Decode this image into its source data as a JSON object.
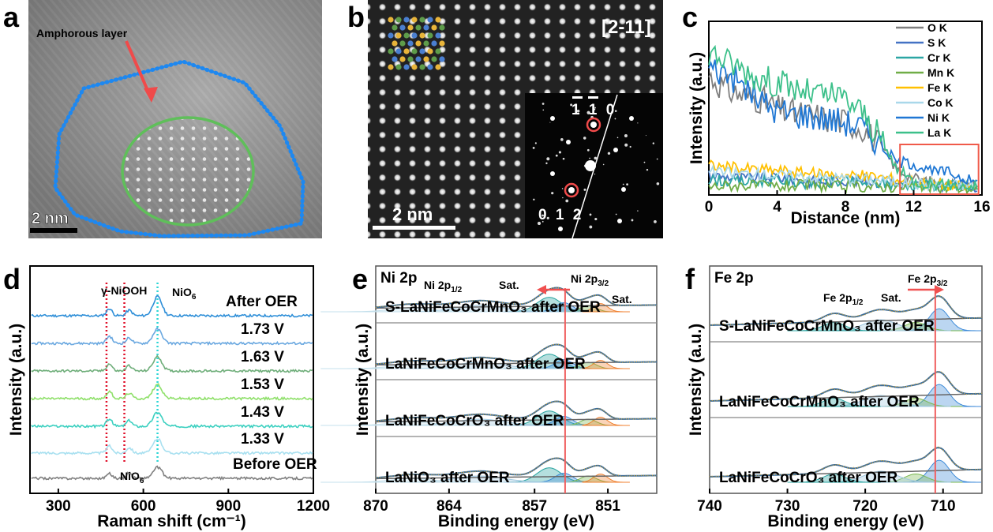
{
  "panels": {
    "a": {
      "label": "a",
      "annotation": "Amphorous layer",
      "scalebar": "2 nm"
    },
    "b": {
      "label": "b",
      "zone_axis": "[2-11]",
      "scalebar": "2 nm",
      "fft_top": "1 1 0",
      "fft_bottom": "0 1 2"
    },
    "c": {
      "label": "c"
    },
    "d": {
      "label": "d",
      "peak_top": "γ-NiOOH",
      "peak_nio6": "NiO",
      "peak_nio6_sub": "6",
      "peak_bottom": "NiO",
      "peak_bottom_sub": "6"
    },
    "e": {
      "label": "e",
      "title": "Ni 2p",
      "sub_a": "Ni 2p",
      "sub_a_idx": "1/2",
      "sat1": "Sat.",
      "sub_b": "Ni 2p",
      "sub_b_idx": "3/2",
      "sat2": "Sat."
    },
    "f": {
      "label": "f",
      "title": "Fe 2p",
      "sub_a": "Fe 2p",
      "sub_a_idx": "1/2",
      "sat": "Sat.",
      "sub_b": "Fe 2p",
      "sub_b_idx": "3/2"
    }
  },
  "chart_data": [
    {
      "panel": "c",
      "type": "line",
      "xlabel": "Distance (nm)",
      "ylabel": "Intensity (a.u.)",
      "xlim": [
        0,
        16
      ],
      "xticks": [
        "0",
        "4",
        "8",
        "12",
        "16"
      ],
      "legend_position": "top-right",
      "series": [
        {
          "name": "O K",
          "color": "#7f7f7f",
          "x": [
            0,
            1,
            2,
            3,
            4,
            5,
            6,
            7,
            8,
            9,
            10,
            11,
            12,
            13,
            14,
            15,
            15.8
          ],
          "values": [
            7.2,
            6.4,
            6.0,
            5.8,
            5.2,
            4.9,
            4.8,
            4.6,
            4.4,
            4.1,
            3.0,
            1.6,
            1.0,
            0.8,
            0.7,
            0.6,
            0.6
          ]
        },
        {
          "name": "S K",
          "color": "#4472c4",
          "x": [
            0,
            2,
            4,
            6,
            8,
            10,
            12,
            14,
            15.8
          ],
          "values": [
            1.2,
            1.0,
            1.1,
            0.8,
            0.9,
            0.8,
            0.6,
            0.6,
            0.5
          ]
        },
        {
          "name": "Cr K",
          "color": "#2ca6a4",
          "x": [
            0,
            2,
            4,
            6,
            8,
            10,
            12,
            14,
            15.8
          ],
          "values": [
            0.9,
            0.8,
            0.9,
            0.7,
            0.8,
            0.7,
            0.6,
            0.6,
            0.5
          ]
        },
        {
          "name": "Mn K",
          "color": "#70ad47",
          "x": [
            0,
            2,
            4,
            6,
            8,
            10,
            12,
            14,
            15.8
          ],
          "values": [
            0.5,
            0.6,
            0.5,
            0.6,
            0.5,
            0.5,
            0.5,
            0.4,
            0.4
          ]
        },
        {
          "name": "Fe K",
          "color": "#ffc000",
          "x": [
            0,
            2,
            4,
            6,
            8,
            10,
            12,
            14,
            15.8
          ],
          "values": [
            1.8,
            1.6,
            1.5,
            1.3,
            1.2,
            1.1,
            0.8,
            0.6,
            0.5
          ]
        },
        {
          "name": "Co K",
          "color": "#a9d8ea",
          "x": [
            0,
            2,
            4,
            6,
            8,
            10,
            12,
            14,
            15.8
          ],
          "values": [
            1.4,
            1.3,
            1.2,
            1.1,
            1.0,
            0.9,
            0.7,
            0.6,
            0.6
          ]
        },
        {
          "name": "Ni K",
          "color": "#1f77d4",
          "x": [
            0,
            1,
            2,
            3,
            4,
            5,
            6,
            7,
            8,
            9,
            10,
            11,
            12,
            13,
            14,
            15,
            15.8
          ],
          "values": [
            7.7,
            7.4,
            6.6,
            5.7,
            5.1,
            4.9,
            4.8,
            4.6,
            4.4,
            4.1,
            3.1,
            2.0,
            1.9,
            1.4,
            1.4,
            1.0,
            0.7
          ]
        },
        {
          "name": "La K",
          "color": "#3cc08a",
          "x": [
            0,
            1,
            2,
            3,
            4,
            5,
            6,
            7,
            8,
            9,
            10,
            11,
            12,
            13,
            14,
            15,
            15.8
          ],
          "values": [
            8.7,
            8.1,
            7.6,
            7.0,
            6.8,
            6.4,
            6.1,
            6.0,
            5.8,
            5.0,
            3.4,
            1.6,
            0.8,
            0.7,
            0.6,
            0.5,
            0.5
          ]
        }
      ],
      "highlight_box_x": [
        11.2,
        15.8
      ]
    },
    {
      "panel": "d",
      "type": "line",
      "xlabel": "Raman shift (cm⁻¹)",
      "ylabel": "Intensity (a.u.)",
      "xlim": [
        200,
        1200
      ],
      "xticks": [
        "300",
        "600",
        "900",
        "1200"
      ],
      "ref_lines": [
        {
          "x": 470,
          "color": "#e0102a"
        },
        {
          "x": 533,
          "color": "#e0102a"
        },
        {
          "x": 650,
          "color": "#2fd6d6"
        }
      ],
      "series": [
        {
          "name": "After OER",
          "color": "#2f8fd8"
        },
        {
          "name": "1.73 V",
          "color": "#6aa8e0"
        },
        {
          "name": "1.63 V",
          "color": "#6fae7a"
        },
        {
          "name": "1.53 V",
          "color": "#8fe06a"
        },
        {
          "name": "1.43 V",
          "color": "#3cd0c0"
        },
        {
          "name": "1.33 V",
          "color": "#a8e0f0"
        },
        {
          "name": "Before OER",
          "color": "#808080"
        }
      ]
    },
    {
      "panel": "e",
      "type": "line",
      "xlabel": "Binding energy (eV)",
      "ylabel": "Intensity (a.u.)",
      "xlim": [
        870,
        847
      ],
      "xticks": [
        "870",
        "864",
        "857",
        "851"
      ],
      "marker_line_x": 854.5,
      "series": [
        {
          "name": "S-LaNiFeCoCrMnO₃ after OER"
        },
        {
          "name": "LaNiFeCoCrMnO₃ after OER"
        },
        {
          "name": "LaNiFeCoCrO₃ after OER"
        },
        {
          "name": "LaNiO₃ after OER"
        }
      ]
    },
    {
      "panel": "f",
      "type": "line",
      "xlabel": "Binding energy (eV)",
      "ylabel": "Intensity (a.u.)",
      "xlim": [
        740,
        705
      ],
      "xticks": [
        "740",
        "730",
        "720",
        "710"
      ],
      "marker_line_x": 711,
      "series": [
        {
          "name": "S-LaNiFeCoCrMnO₃ after OER"
        },
        {
          "name": "LaNiFeCoCrMnO₃ after OER"
        },
        {
          "name": "LaNiFeCoCrO₃ after OER"
        }
      ]
    }
  ]
}
